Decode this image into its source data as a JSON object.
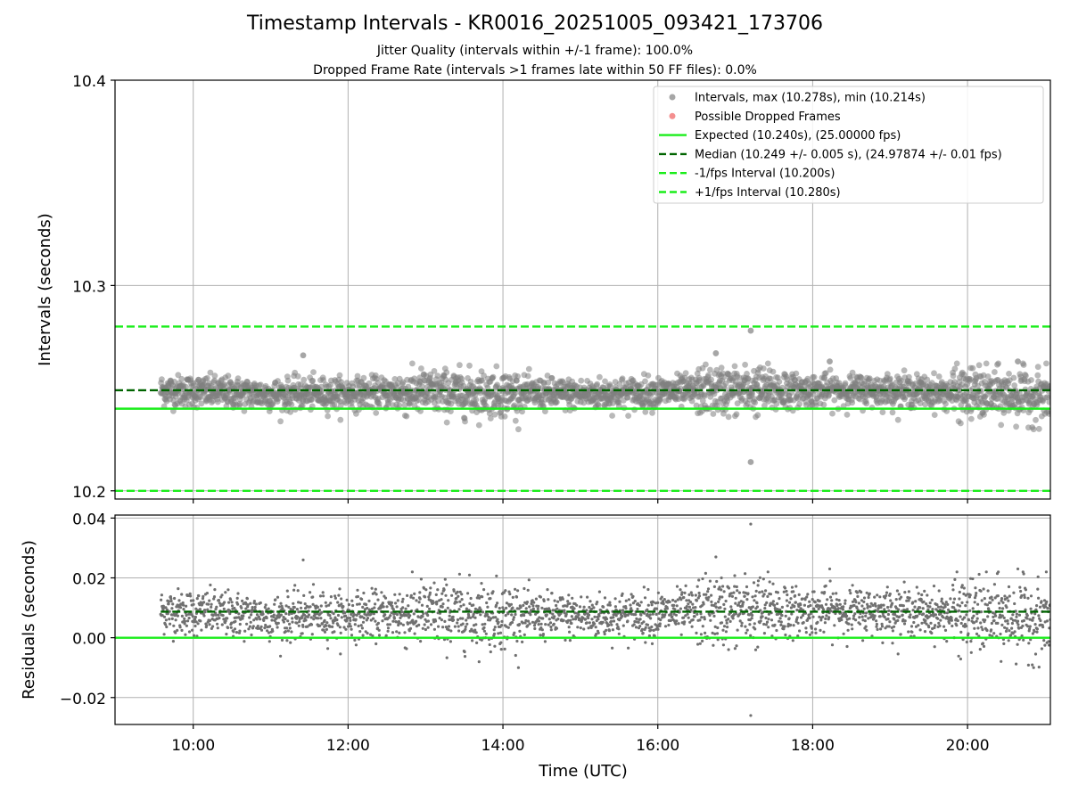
{
  "chart_data": [
    {
      "type": "scatter",
      "title": "Timestamp Intervals - KR0016_20251005_093421_173706",
      "subtitle_lines": [
        "Jitter Quality (intervals within +/-1 frame): 100.0%",
        "Dropped Frame Rate (intervals >1 frames late within 50 FF files): 0.0%"
      ],
      "xlabel": "",
      "ylabel": "Intervals (seconds)",
      "xlim_hours": [
        8.99,
        21.07
      ],
      "ylim": [
        10.196,
        10.4
      ],
      "yticks": [
        10.2,
        10.3,
        10.4
      ],
      "ytick_labels": [
        "10.2",
        "10.3",
        "10.4"
      ],
      "grid": true,
      "legend_position": "top-right",
      "scatter_time_range_hours": [
        9.58,
        21.07
      ],
      "lines": [
        {
          "name": "Expected (10.240s), (25.00000 fps)",
          "y": 10.24,
          "color": "#1aed1a",
          "style": "solid"
        },
        {
          "name": "Median (10.249 +/- 0.005 s), (24.97874 +/- 0.01 fps)",
          "y": 10.249,
          "color": "#006400",
          "style": "dashed"
        },
        {
          "name": "-1/fps Interval (10.200s)",
          "y": 10.2,
          "color": "#1aed1a",
          "style": "dashed"
        },
        {
          "name": "+1/fps Interval (10.280s)",
          "y": 10.28,
          "color": "#1aed1a",
          "style": "dashed"
        }
      ],
      "series": [
        {
          "name": "Intervals, max (10.278s), min (10.214s)",
          "color": "#808080",
          "marker": "circle"
        },
        {
          "name": "Possible Dropped Frames",
          "color": "#f06060",
          "marker": "circle"
        }
      ],
      "outliers": [
        {
          "x": 11.42,
          "y": 10.266
        },
        {
          "x": 16.75,
          "y": 10.267
        },
        {
          "x": 17.2,
          "y": 10.278
        },
        {
          "x": 17.2,
          "y": 10.214
        },
        {
          "x": 18.22,
          "y": 10.263
        },
        {
          "x": 20.65,
          "y": 10.263
        }
      ],
      "drift": [
        {
          "x": 9.6,
          "y": 10.249
        },
        {
          "x": 11.0,
          "y": 10.247
        },
        {
          "x": 13.0,
          "y": 10.248
        },
        {
          "x": 15.0,
          "y": 10.247
        },
        {
          "x": 17.0,
          "y": 10.249
        },
        {
          "x": 19.0,
          "y": 10.249
        },
        {
          "x": 21.0,
          "y": 10.246
        }
      ]
    },
    {
      "type": "scatter",
      "xlabel": "Time (UTC)",
      "ylabel": "Residuals (seconds)",
      "xlim_hours": [
        8.99,
        21.07
      ],
      "ylim": [
        -0.029,
        0.041
      ],
      "yticks": [
        -0.02,
        0.0,
        0.02,
        0.04
      ],
      "ytick_labels": [
        "−0.02",
        "0.00",
        "0.02",
        "0.04"
      ],
      "xticks_hours": [
        10,
        12,
        14,
        16,
        18,
        20
      ],
      "xtick_labels": [
        "10:00",
        "12:00",
        "14:00",
        "16:00",
        "18:00",
        "20:00"
      ],
      "grid": true,
      "lines": [
        {
          "y": 0.0,
          "color": "#1aed1a",
          "style": "solid"
        },
        {
          "y": 0.0087,
          "color": "#006400",
          "style": "dashed"
        }
      ],
      "outliers": [
        {
          "x": 11.42,
          "y": 0.026
        },
        {
          "x": 16.75,
          "y": 0.027
        },
        {
          "x": 17.2,
          "y": 0.038
        },
        {
          "x": 17.2,
          "y": -0.026
        },
        {
          "x": 18.22,
          "y": 0.023
        },
        {
          "x": 20.65,
          "y": 0.023
        }
      ]
    }
  ]
}
